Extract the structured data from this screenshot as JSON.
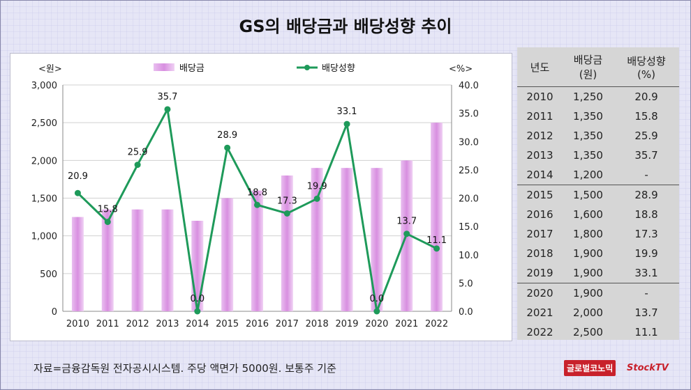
{
  "title": "GS의 배당금과 배당성향 추이",
  "footer": "자료=금융감독원 전자공시시스템. 주당 액면가 5000원. 보통주 기준",
  "logos": [
    "글로벌코노믹",
    "StockTV"
  ],
  "colors": {
    "bar": "#e0a8e8",
    "line": "#1e9a5a",
    "background": "#e6e6f6"
  },
  "chart_data": {
    "type": "bar+line",
    "categories": [
      "2010",
      "2011",
      "2012",
      "2013",
      "2014",
      "2015",
      "2016",
      "2017",
      "2018",
      "2019",
      "2020",
      "2021",
      "2022"
    ],
    "series": [
      {
        "name": "배당금",
        "axis": "left",
        "values": [
          1250,
          1350,
          1350,
          1350,
          1200,
          1500,
          1600,
          1800,
          1900,
          1900,
          1900,
          2000,
          2500
        ]
      },
      {
        "name": "배당성향",
        "axis": "right",
        "values": [
          20.9,
          15.8,
          25.9,
          35.7,
          0.0,
          28.9,
          18.8,
          17.3,
          19.9,
          33.1,
          0.0,
          13.7,
          11.1
        ]
      }
    ],
    "y_left": {
      "unit": "<원>",
      "range": [
        0,
        3000
      ],
      "ticks": [
        "0",
        "500",
        "1,000",
        "1,500",
        "2,000",
        "2,500",
        "3,000"
      ]
    },
    "y_right": {
      "unit": "<%>",
      "range": [
        0,
        40
      ],
      "ticks": [
        "0.0",
        "5.0",
        "10.0",
        "15.0",
        "20.0",
        "25.0",
        "30.0",
        "35.0",
        "40.0"
      ]
    },
    "line_labels": [
      "20.9",
      "15.8",
      "25.9",
      "35.7",
      "0.0",
      "28.9",
      "18.8",
      "17.3",
      "19.9",
      "33.1",
      "0.0",
      "13.7",
      "11.1"
    ],
    "legend_position": "top-center"
  },
  "table": {
    "headers": [
      "년도",
      "배당금\n(원)",
      "배당성향\n(%)"
    ],
    "header_lines": [
      [
        "년도"
      ],
      [
        "배당금",
        "(원)"
      ],
      [
        "배당성향",
        "(%)"
      ]
    ],
    "rows": [
      [
        "2010",
        "1,250",
        "20.9"
      ],
      [
        "2011",
        "1,350",
        "15.8"
      ],
      [
        "2012",
        "1,350",
        "25.9"
      ],
      [
        "2013",
        "1,350",
        "35.7"
      ],
      [
        "2014",
        "1,200",
        "-"
      ],
      [
        "2015",
        "1,500",
        "28.9"
      ],
      [
        "2016",
        "1,600",
        "18.8"
      ],
      [
        "2017",
        "1,800",
        "17.3"
      ],
      [
        "2018",
        "1,900",
        "19.9"
      ],
      [
        "2019",
        "1,900",
        "33.1"
      ],
      [
        "2020",
        "1,900",
        "-"
      ],
      [
        "2021",
        "2,000",
        "13.7"
      ],
      [
        "2022",
        "2,500",
        "11.1"
      ]
    ],
    "separator_before": [
      0,
      5,
      10
    ]
  }
}
